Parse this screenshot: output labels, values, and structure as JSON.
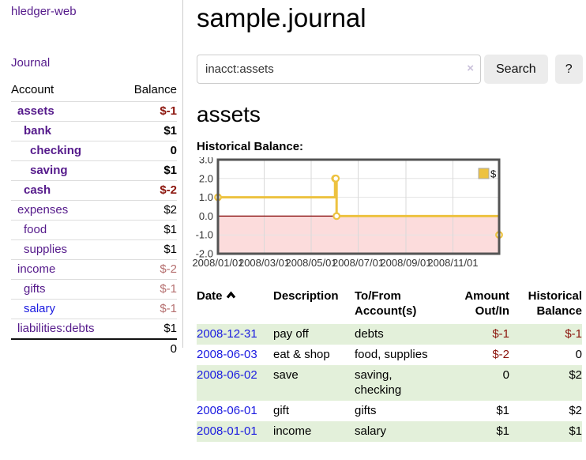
{
  "colors": {
    "link_purple": "#551a8b",
    "link_blue": "#1a1ae0",
    "negative_strong": "#8b140c",
    "negative_soft": "#b56f6f",
    "row_green": "#e3f0da",
    "chart_line": "#edc240",
    "chart_negative_fill": "#fcdcdc",
    "chart_zero_line": "#800000",
    "chart_border": "#545454"
  },
  "app": {
    "name": "hledger-web",
    "nav_journal": "Journal"
  },
  "sidebar": {
    "header": {
      "account": "Account",
      "balance": "Balance"
    },
    "items": [
      {
        "label": "assets",
        "balance": "$-1",
        "level": 1,
        "bold": true,
        "balance_style": "neg-strong",
        "link": "purple"
      },
      {
        "label": "bank",
        "balance": "$1",
        "level": 2,
        "bold": true,
        "balance_style": "pos",
        "link": "purple"
      },
      {
        "label": "checking",
        "balance": "0",
        "level": 3,
        "bold": true,
        "balance_style": "pos",
        "link": "purple"
      },
      {
        "label": "saving",
        "balance": "$1",
        "level": 3,
        "bold": true,
        "balance_style": "pos",
        "link": "purple"
      },
      {
        "label": "cash",
        "balance": "$-2",
        "level": 2,
        "bold": true,
        "balance_style": "neg-strong",
        "link": "purple"
      },
      {
        "label": "expenses",
        "balance": "$2",
        "level": 1,
        "bold": false,
        "balance_style": "pos",
        "link": "purple"
      },
      {
        "label": "food",
        "balance": "$1",
        "level": 2,
        "bold": false,
        "balance_style": "pos",
        "link": "purple"
      },
      {
        "label": "supplies",
        "balance": "$1",
        "level": 2,
        "bold": false,
        "balance_style": "pos",
        "link": "purple"
      },
      {
        "label": "income",
        "balance": "$-2",
        "level": 1,
        "bold": false,
        "balance_style": "neg-soft",
        "link": "purple"
      },
      {
        "label": "gifts",
        "balance": "$-1",
        "level": 2,
        "bold": false,
        "balance_style": "neg-soft",
        "link": "purple"
      },
      {
        "label": "salary",
        "balance": "$-1",
        "level": 2,
        "bold": false,
        "balance_style": "neg-soft",
        "link": "blue"
      },
      {
        "label": "liabilities:debts",
        "balance": "$1",
        "level": 1,
        "bold": false,
        "balance_style": "pos",
        "link": "purple"
      }
    ],
    "total": "0"
  },
  "main": {
    "title": "sample.journal",
    "search": {
      "value": "inacct:assets",
      "clear_icon": "×",
      "button_label": "Search",
      "help_label": "?"
    },
    "account_heading": "assets",
    "chart_label": "Historical Balance:"
  },
  "chart_data": {
    "type": "line",
    "title": "Historical Balance",
    "step": true,
    "legend": {
      "label": "$",
      "position": "top-right"
    },
    "x_range": [
      "2008/01/01",
      "2008/12/31"
    ],
    "ylim": [
      -2,
      3
    ],
    "y_ticks": [
      "3.0",
      "2.0",
      "1.0",
      "0.0",
      "-1.0",
      "-2.0"
    ],
    "x_ticks": [
      "2008/01/01",
      "2008/03/01",
      "2008/05/01",
      "2008/07/01",
      "2008/09/01",
      "2008/11/01"
    ],
    "grid": true,
    "series": [
      {
        "name": "$",
        "color": "#edc240",
        "points": [
          {
            "date": "2008/01/01",
            "value": 1
          },
          {
            "date": "2008/06/01",
            "value": 2
          },
          {
            "date": "2008/06/02",
            "value": 2
          },
          {
            "date": "2008/06/03",
            "value": 0
          },
          {
            "date": "2008/12/31",
            "value": -1
          }
        ]
      }
    ]
  },
  "register": {
    "headers": [
      "Date",
      "Description",
      "To/From Account(s)",
      "Amount Out/In",
      "Historical Balance"
    ],
    "rows": [
      {
        "date": "2008-12-31",
        "description": "pay off",
        "accounts": "debts",
        "amount": "$-1",
        "amount_negative": true,
        "balance": "$-1",
        "balance_negative": true
      },
      {
        "date": "2008-06-03",
        "description": "eat & shop",
        "accounts": "food, supplies",
        "amount": "$-2",
        "amount_negative": true,
        "balance": "0",
        "balance_negative": false
      },
      {
        "date": "2008-06-02",
        "description": "save",
        "accounts": "saving, checking",
        "amount": "0",
        "amount_negative": false,
        "balance": "$2",
        "balance_negative": false
      },
      {
        "date": "2008-06-01",
        "description": "gift",
        "accounts": "gifts",
        "amount": "$1",
        "amount_negative": false,
        "balance": "$2",
        "balance_negative": false
      },
      {
        "date": "2008-01-01",
        "description": "income",
        "accounts": "salary",
        "amount": "$1",
        "amount_negative": false,
        "balance": "$1",
        "balance_negative": false
      }
    ]
  }
}
